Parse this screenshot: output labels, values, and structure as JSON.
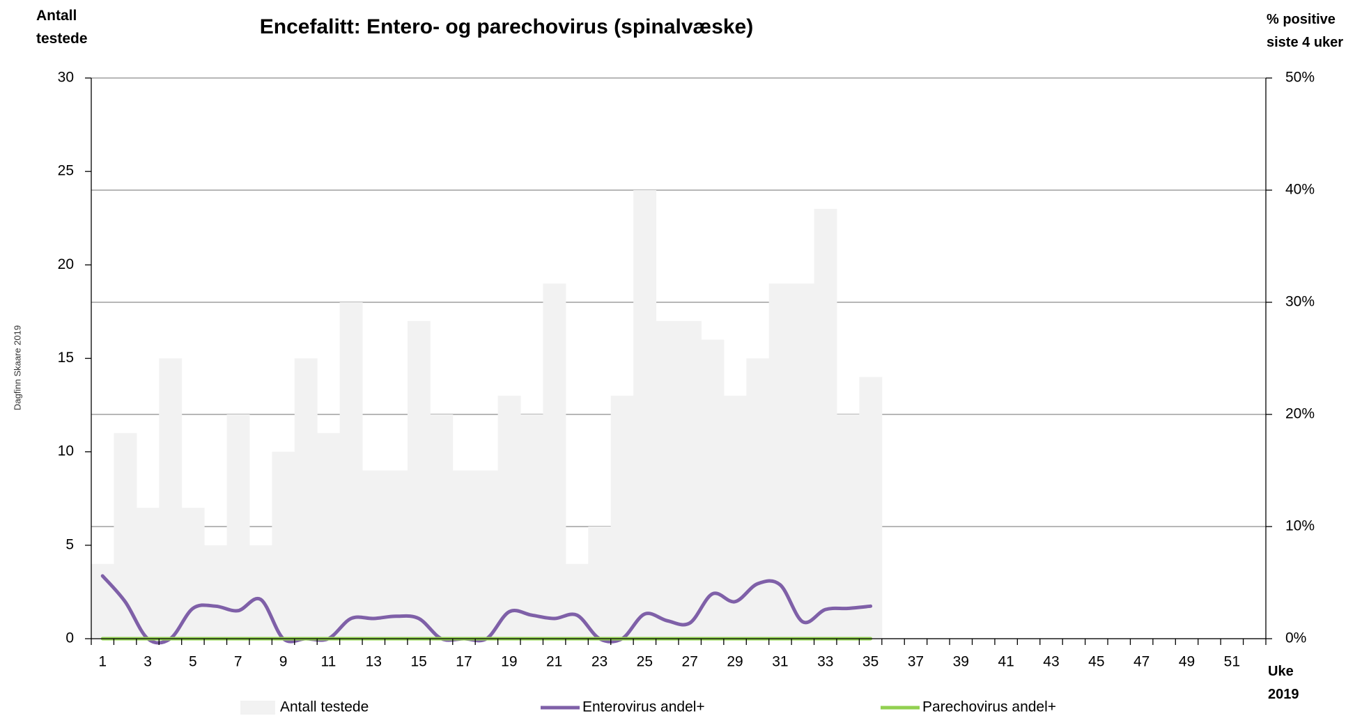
{
  "chart_data": {
    "type": "bar",
    "title": "Encefalitt: Entero- og parechovirus (spinalvæske)",
    "y_label": "Antall testede",
    "y2_label": "% positive siste 4 uker",
    "x_label": "Uke 2019",
    "watermark": "Dagfinn Skaare 2019",
    "categories": [
      "1",
      null,
      "3",
      null,
      "5",
      null,
      "7",
      null,
      "9",
      null,
      "11",
      null,
      "13",
      null,
      "15",
      null,
      "17",
      null,
      "19",
      null,
      "21",
      null,
      "23",
      null,
      "25",
      null,
      "27",
      null,
      "29",
      null,
      "31",
      null,
      "33",
      null,
      "35",
      null,
      "37",
      null,
      "39",
      null,
      "41",
      null,
      "43",
      null,
      "45",
      null,
      "47",
      null,
      "49",
      null,
      "51",
      null
    ],
    "series": [
      {
        "name": "Antall testede",
        "type": "bar",
        "color": "#f2f2f2",
        "values": [
          4,
          11,
          7,
          15,
          7,
          5,
          12,
          5,
          10,
          15,
          11,
          18,
          9,
          9,
          17,
          12,
          9,
          9,
          13,
          12,
          19,
          4,
          6,
          13,
          24,
          17,
          17,
          16,
          13,
          15,
          19,
          19,
          23,
          12,
          14,
          null,
          null,
          null,
          null,
          null,
          null,
          null,
          null,
          null,
          null,
          null,
          null,
          null,
          null,
          null,
          null,
          null
        ]
      },
      {
        "name": "Enterovirus andel+",
        "type": "line",
        "axis": "y2",
        "color": "#7f60a8",
        "values": [
          5.6,
          3.3,
          0,
          0,
          2.7,
          2.9,
          2.5,
          3.5,
          0,
          0,
          0,
          1.8,
          1.8,
          2.0,
          1.8,
          0,
          0,
          0,
          2.4,
          2.1,
          1.8,
          2.1,
          0,
          0,
          2.2,
          1.6,
          1.4,
          4.0,
          3.3,
          4.9,
          4.8,
          1.5,
          2.6,
          2.7,
          2.9,
          null,
          null,
          null,
          null,
          null,
          null,
          null,
          null,
          null,
          null,
          null,
          null,
          null,
          null,
          null,
          null,
          null
        ]
      },
      {
        "name": "Parechovirus andel+",
        "type": "line",
        "axis": "y2",
        "color": "#92d050",
        "values": [
          0,
          0,
          0,
          0,
          0,
          0,
          0,
          0,
          0,
          0,
          0,
          0,
          0,
          0,
          0,
          0,
          0,
          0,
          0,
          0,
          0,
          0,
          0,
          0,
          0,
          0,
          0,
          0,
          0,
          0,
          0,
          0,
          0,
          0,
          0,
          null,
          null,
          null,
          null,
          null,
          null,
          null,
          null,
          null,
          null,
          null,
          null,
          null,
          null,
          null,
          null,
          null
        ]
      }
    ],
    "ylim": [
      0,
      30
    ],
    "yticks": [
      0,
      5,
      10,
      15,
      20,
      25,
      30
    ],
    "y2lim": [
      0,
      50
    ],
    "y2ticks": [
      {
        "value": 0,
        "label": "0%"
      },
      {
        "value": 10,
        "label": "10%"
      },
      {
        "value": 20,
        "label": "20%"
      },
      {
        "value": 30,
        "label": "30%"
      },
      {
        "value": 40,
        "label": "40%"
      },
      {
        "value": 50,
        "label": "50%"
      }
    ],
    "grid": true,
    "legend": "bottom"
  }
}
